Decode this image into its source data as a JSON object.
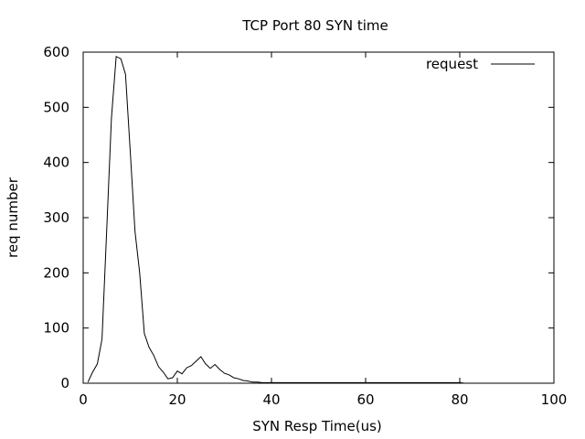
{
  "chart_data": {
    "type": "line",
    "title": "TCP Port 80 SYN time",
    "xlabel": "SYN Resp Time(us)",
    "ylabel": "req number",
    "xlim": [
      0,
      100
    ],
    "ylim": [
      0,
      600
    ],
    "xticks": [
      0,
      20,
      40,
      60,
      80,
      100
    ],
    "yticks": [
      0,
      100,
      200,
      300,
      400,
      500,
      600
    ],
    "x_tick_labels": [
      "0",
      "20",
      "40",
      "60",
      "80",
      "100"
    ],
    "y_tick_labels": [
      "0",
      "100",
      "200",
      "300",
      "400",
      "500",
      "600"
    ],
    "grid": false,
    "legend_position": "top-right",
    "series": [
      {
        "name": "request",
        "color": "#000000",
        "x": [
          1,
          2,
          3,
          4,
          5,
          6,
          7,
          8,
          9,
          10,
          11,
          12,
          13,
          14,
          15,
          16,
          17,
          18,
          19,
          20,
          21,
          22,
          23,
          24,
          25,
          26,
          27,
          28,
          29,
          30,
          31,
          32,
          33,
          34,
          35,
          36,
          37,
          38,
          40,
          45,
          50,
          55,
          60,
          65,
          70,
          75,
          80,
          81
        ],
        "y": [
          2,
          20,
          35,
          80,
          280,
          480,
          592,
          588,
          560,
          420,
          275,
          200,
          90,
          65,
          50,
          30,
          20,
          8,
          10,
          22,
          17,
          28,
          32,
          40,
          48,
          35,
          27,
          34,
          25,
          18,
          15,
          10,
          8,
          5,
          4,
          2,
          2,
          1,
          1,
          1,
          1,
          1,
          1,
          1,
          1,
          1,
          1,
          0
        ]
      }
    ]
  }
}
